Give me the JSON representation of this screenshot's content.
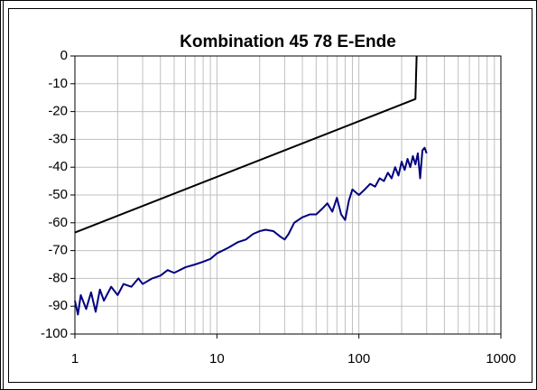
{
  "chart_data": {
    "type": "line",
    "title": "Kombination 45 78 E-Ende",
    "log_x": true,
    "grid": true,
    "xlim": [
      1,
      1000
    ],
    "xticks": [
      1,
      10,
      100,
      1000
    ],
    "xminorticks": [
      2,
      3,
      4,
      5,
      6,
      7,
      8,
      9,
      20,
      30,
      40,
      50,
      60,
      70,
      80,
      90,
      200,
      300,
      400,
      500,
      600,
      700,
      800,
      900
    ],
    "ylim": [
      -100,
      0
    ],
    "yticks": [
      0,
      -10,
      -20,
      -30,
      -40,
      -50,
      -60,
      -70,
      -80,
      -90,
      -100
    ],
    "series": [
      {
        "color": "#000000",
        "x": [
          1,
          250,
          255
        ],
        "values": [
          -63.5,
          -15.5,
          0
        ]
      },
      {
        "color": "#000080",
        "x": [
          1,
          1.05,
          1.1,
          1.2,
          1.3,
          1.4,
          1.5,
          1.6,
          1.8,
          2,
          2.2,
          2.5,
          2.8,
          3,
          3.5,
          4,
          4.5,
          5,
          6,
          7,
          8,
          9,
          10,
          12,
          14,
          16,
          18,
          20,
          22,
          25,
          28,
          30,
          32,
          35,
          40,
          45,
          50,
          55,
          60,
          65,
          70,
          75,
          80,
          85,
          90,
          100,
          110,
          120,
          130,
          140,
          150,
          160,
          170,
          180,
          190,
          200,
          210,
          220,
          230,
          240,
          250,
          260,
          270,
          280,
          290,
          300
        ],
        "values": [
          -88,
          -93,
          -86,
          -91,
          -85,
          -92,
          -84,
          -88,
          -83,
          -86,
          -82,
          -83,
          -80,
          -82,
          -80,
          -79,
          -77,
          -78,
          -76,
          -75,
          -74,
          -73,
          -71,
          -69,
          -67,
          -66,
          -64,
          -63,
          -62.5,
          -63,
          -65,
          -66,
          -64,
          -60,
          -58,
          -57,
          -57,
          -55,
          -53,
          -56,
          -51,
          -57,
          -59,
          -52,
          -48,
          -50,
          -48,
          -46,
          -47,
          -44,
          -45,
          -42,
          -44,
          -40,
          -43,
          -38,
          -41,
          -37,
          -40,
          -36,
          -39,
          -35,
          -44,
          -34,
          -33,
          -35
        ]
      }
    ]
  }
}
